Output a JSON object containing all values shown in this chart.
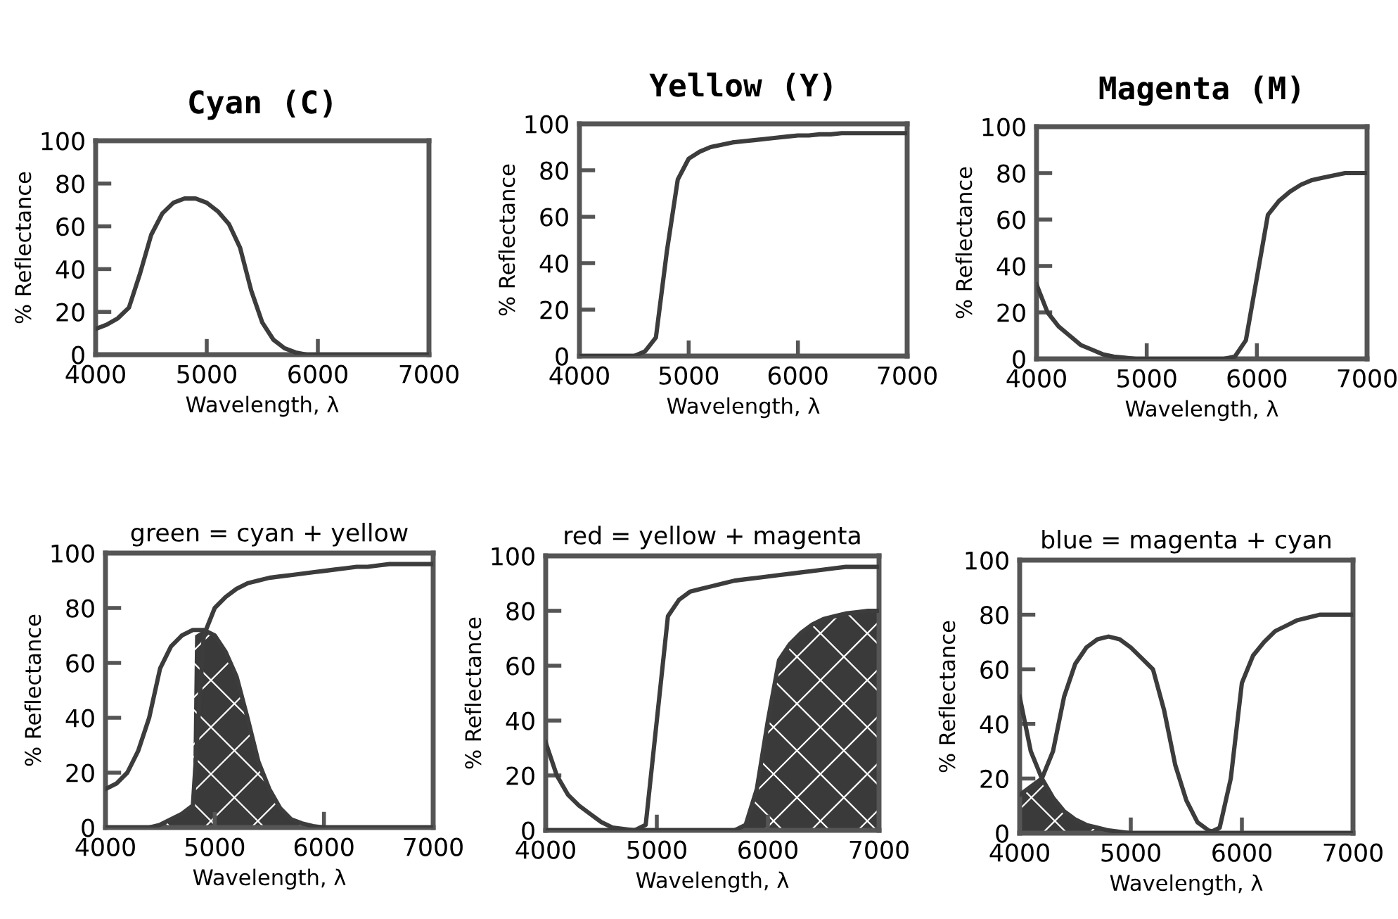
{
  "chart_data": [
    {
      "type": "line",
      "title": "Cyan (C)",
      "xlabel": "Wavelength, λ",
      "ylabel": "% Reflectance",
      "xlim": [
        4000,
        7000
      ],
      "ylim": [
        0,
        100
      ],
      "xticks": [
        4000,
        5000,
        6000,
        7000
      ],
      "yticks": [
        0,
        20,
        40,
        60,
        80,
        100
      ],
      "grid": false,
      "x": [
        4000,
        4100,
        4200,
        4300,
        4400,
        4500,
        4600,
        4700,
        4800,
        4900,
        5000,
        5100,
        5200,
        5300,
        5400,
        5500,
        5600,
        5700,
        5800,
        5900,
        6000,
        6100,
        6200,
        6300,
        6400,
        6500,
        6600,
        6700,
        6800,
        6900,
        7000
      ],
      "series": [
        {
          "color": "#3c3c3c",
          "values": [
            12,
            14,
            17,
            22,
            38,
            56,
            66,
            71,
            73,
            73,
            71,
            67,
            61,
            50,
            30,
            15,
            7,
            3,
            1,
            0,
            0,
            0,
            0,
            0,
            0,
            0,
            0,
            0,
            0,
            0,
            0
          ]
        }
      ]
    },
    {
      "type": "line",
      "title": "Yellow (Y)",
      "xlabel": "Wavelength, λ",
      "ylabel": "% Reflectance",
      "xlim": [
        4000,
        7000
      ],
      "ylim": [
        0,
        100
      ],
      "xticks": [
        4000,
        5000,
        6000,
        7000
      ],
      "yticks": [
        0,
        20,
        40,
        60,
        80,
        100
      ],
      "grid": false,
      "x": [
        4000,
        4100,
        4200,
        4300,
        4400,
        4500,
        4600,
        4700,
        4800,
        4900,
        5000,
        5100,
        5200,
        5300,
        5400,
        5500,
        5600,
        5700,
        5800,
        5900,
        6000,
        6100,
        6200,
        6300,
        6400,
        6500,
        6600,
        6700,
        6800,
        6900,
        7000
      ],
      "series": [
        {
          "color": "#3c3c3c",
          "values": [
            0,
            0,
            0,
            0,
            0,
            0,
            2,
            8,
            45,
            76,
            85,
            88,
            90,
            91,
            92,
            92.5,
            93,
            93.5,
            94,
            94.5,
            95,
            95,
            95.5,
            95.5,
            96,
            96,
            96,
            96,
            96,
            96,
            96
          ]
        }
      ]
    },
    {
      "type": "line",
      "title": "Magenta (M)",
      "xlabel": "Wavelength, λ",
      "ylabel": "% Reflectance",
      "xlim": [
        4000,
        7000
      ],
      "ylim": [
        0,
        100
      ],
      "xticks": [
        4000,
        5000,
        6000,
        7000
      ],
      "yticks": [
        0,
        20,
        40,
        60,
        80,
        100
      ],
      "grid": false,
      "x": [
        4000,
        4100,
        4200,
        4300,
        4400,
        4500,
        4600,
        4700,
        4800,
        4900,
        5000,
        5100,
        5200,
        5300,
        5400,
        5500,
        5600,
        5700,
        5800,
        5900,
        6000,
        6100,
        6200,
        6300,
        6400,
        6500,
        6600,
        6700,
        6800,
        6900,
        7000
      ],
      "series": [
        {
          "color": "#3c3c3c",
          "values": [
            32,
            20,
            14,
            10,
            6,
            4,
            2,
            1,
            0.5,
            0,
            0,
            0,
            0,
            0,
            0,
            0,
            0,
            0,
            1,
            8,
            35,
            62,
            68,
            72,
            75,
            77,
            78,
            79,
            80,
            80,
            80
          ]
        }
      ]
    },
    {
      "type": "line",
      "title": "green = cyan + yellow",
      "xlabel": "Wavelength, λ",
      "ylabel": "% Reflectance",
      "xlim": [
        4000,
        7000
      ],
      "ylim": [
        0,
        100
      ],
      "xticks": [
        4000,
        5000,
        6000,
        7000
      ],
      "yticks": [
        0,
        20,
        40,
        60,
        80,
        100
      ],
      "grid": false,
      "x": [
        4000,
        4100,
        4200,
        4300,
        4400,
        4500,
        4600,
        4700,
        4800,
        4900,
        5000,
        5100,
        5200,
        5300,
        5400,
        5500,
        5600,
        5700,
        5800,
        5900,
        6000,
        6100,
        6200,
        6300,
        6400,
        6500,
        6600,
        6700,
        6800,
        6900,
        7000
      ],
      "series": [
        {
          "color": "#3c3c3c",
          "values": [
            14,
            16,
            20,
            28,
            40,
            58,
            66,
            70,
            72,
            72,
            70,
            64,
            55,
            40,
            24,
            14,
            7,
            3,
            1.5,
            0.5,
            0,
            0,
            0,
            0,
            0,
            0,
            0,
            0,
            0,
            0,
            0
          ]
        },
        {
          "color": "#3c3c3c",
          "values": [
            0,
            0,
            0,
            0,
            0,
            1,
            3,
            5,
            8,
            70,
            80,
            84,
            87,
            89,
            90,
            91,
            91.5,
            92,
            92.5,
            93,
            93.5,
            94,
            94.5,
            95,
            95,
            95.5,
            96,
            96,
            96,
            96,
            96
          ]
        },
        {
          "type": "area",
          "color": "#3a3a3a",
          "x": [
            4400,
            4500,
            4600,
            4700,
            4800,
            4820,
            4900,
            5000,
            5100,
            5200,
            5300,
            5400,
            5500,
            5600,
            5700,
            5800,
            5900,
            6000
          ],
          "values": [
            0,
            1,
            3,
            5,
            8,
            70,
            72,
            70,
            64,
            55,
            40,
            24,
            14,
            7,
            3,
            1.5,
            0.5,
            0
          ]
        }
      ]
    },
    {
      "type": "line",
      "title": "red = yellow + magenta",
      "xlabel": "Wavelength, λ",
      "ylabel": "% Reflectance",
      "xlim": [
        4000,
        7000
      ],
      "ylim": [
        0,
        100
      ],
      "xticks": [
        4000,
        5000,
        6000,
        7000
      ],
      "yticks": [
        0,
        20,
        40,
        60,
        80,
        100
      ],
      "grid": false,
      "x": [
        4000,
        4100,
        4200,
        4300,
        4400,
        4500,
        4600,
        4700,
        4800,
        4900,
        5000,
        5100,
        5200,
        5300,
        5400,
        5500,
        5600,
        5700,
        5800,
        5900,
        6000,
        6100,
        6200,
        6300,
        6400,
        6500,
        6600,
        6700,
        6800,
        6900,
        7000
      ],
      "series": [
        {
          "color": "#3c3c3c",
          "values": [
            32,
            20,
            13,
            9,
            6,
            3,
            1,
            0.5,
            0,
            0,
            0,
            0,
            0,
            0,
            0,
            0,
            0,
            0,
            2,
            15,
            40,
            62,
            68,
            72,
            75,
            77,
            78,
            79,
            79.5,
            80,
            80
          ]
        },
        {
          "color": "#3c3c3c",
          "values": [
            0,
            0,
            0,
            0,
            0,
            0,
            0,
            0,
            0,
            2,
            40,
            78,
            84,
            87,
            88,
            89,
            90,
            91,
            91.5,
            92,
            92.5,
            93,
            93.5,
            94,
            94.5,
            95,
            95.5,
            96,
            96,
            96,
            96
          ]
        },
        {
          "type": "area",
          "color": "#3a3a3a",
          "x": [
            5750,
            5800,
            5900,
            6000,
            6100,
            6200,
            6300,
            6400,
            6500,
            6600,
            6700,
            6800,
            6900,
            7000
          ],
          "values": [
            0,
            2,
            15,
            40,
            62,
            68,
            72,
            75,
            77,
            78,
            79,
            79.5,
            80,
            80
          ]
        }
      ]
    },
    {
      "type": "line",
      "title": "blue = magenta + cyan",
      "xlabel": "Wavelength, λ",
      "ylabel": "% Reflectance",
      "xlim": [
        4000,
        7000
      ],
      "ylim": [
        0,
        100
      ],
      "xticks": [
        4000,
        5000,
        6000,
        7000
      ],
      "yticks": [
        0,
        20,
        40,
        60,
        80,
        100
      ],
      "grid": false,
      "x": [
        4000,
        4100,
        4200,
        4300,
        4400,
        4500,
        4600,
        4700,
        4800,
        4900,
        5000,
        5100,
        5200,
        5300,
        5400,
        5500,
        5600,
        5700,
        5800,
        5900,
        6000,
        6100,
        6200,
        6300,
        6400,
        6500,
        6600,
        6700,
        6800,
        6900,
        7000
      ],
      "series": [
        {
          "color": "#3c3c3c",
          "values": [
            50,
            30,
            20,
            13,
            8,
            5,
            3,
            2,
            1,
            0.5,
            0,
            0,
            0,
            0,
            0,
            0,
            0,
            0,
            2,
            20,
            55,
            65,
            70,
            74,
            76,
            78,
            79,
            80,
            80,
            80,
            80
          ]
        },
        {
          "color": "#3c3c3c",
          "values": [
            14,
            17,
            20,
            30,
            50,
            62,
            68,
            71,
            72,
            71,
            68,
            64,
            60,
            45,
            25,
            12,
            4,
            1,
            0,
            0,
            0,
            0,
            0,
            0,
            0,
            0,
            0,
            0,
            0,
            0,
            0
          ]
        },
        {
          "type": "area",
          "color": "#3a3a3a",
          "x": [
            4000,
            4100,
            4200,
            4300,
            4400,
            4500,
            4600,
            4700,
            4800,
            4900,
            5000
          ],
          "values": [
            14,
            17,
            20,
            13,
            8,
            5,
            3,
            2,
            1,
            0.5,
            0
          ]
        }
      ]
    }
  ]
}
